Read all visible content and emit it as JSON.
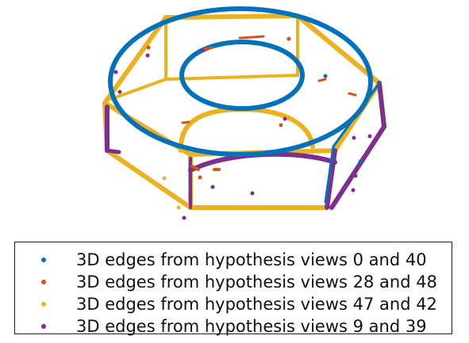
{
  "legend": {
    "entries": [
      {
        "label": "3D edges from hypothesis views 0 and 40",
        "color": "#0072BD"
      },
      {
        "label": "3D edges from hypothesis views 28 and 48",
        "color": "#D95319"
      },
      {
        "label": "3D edges from hypothesis views 47 and 42",
        "color": "#EDB120"
      },
      {
        "label": "3D edges from hypothesis views 9 and 39",
        "color": "#7E2F8E"
      }
    ]
  },
  "figure": {
    "subject": "hex-nut-3d-edge-reconstruction",
    "colors": {
      "blue": "#0072BD",
      "orange": "#D95319",
      "yellow": "#EDB120",
      "purple": "#7E2F8E"
    }
  }
}
